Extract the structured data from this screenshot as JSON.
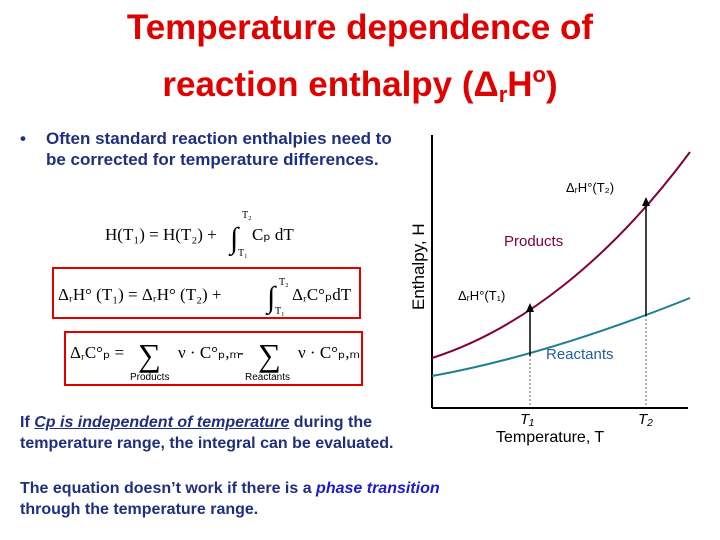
{
  "title": {
    "line1": "Temperature dependence of",
    "line2_pre": "reaction enthalpy (Δ",
    "line2_sub": "r",
    "line2_mid": "H",
    "line2_sup": "o",
    "line2_post": ")"
  },
  "bullet": "Often standard reaction enthalpies need to be corrected for temperature differences.",
  "equations": [
    {
      "lhs": "H(T₁) = H(T₂) +",
      "integral": "∫",
      "upper": "T₂",
      "lower": "T₁",
      "integrand": "Cₚ dT"
    },
    {
      "lhs": "ΔᵣH° (T₁) = ΔᵣH° (T₂) +",
      "integral": "∫",
      "upper": "T₂",
      "lower": "T₁",
      "integrand": "ΔᵣC°ₚdT"
    },
    {
      "lhs": "ΔᵣC°ₚ =",
      "sum1": "∑",
      "term1": "ν · C°ₚ,ₘ",
      "under1": "Products",
      "minus": "-",
      "sum2": "∑",
      "term2": "ν · C°ₚ,ₘ",
      "under2": "Reactants"
    }
  ],
  "note1": {
    "pre": "If ",
    "emphasis": "Cp is independent of temperature",
    "post": " during the temperature range, the integral can be evaluated."
  },
  "note2": {
    "pre": "The equation doesn’t work if there is a ",
    "emphasis": "phase transition",
    "post": " through the temperature range."
  },
  "diagram": {
    "y_label": "Enthalpy, H",
    "x_label": "Temperature, T",
    "products": "Products",
    "reactants": "Reactants",
    "dh_t2": "ΔᵣH°(T₂)",
    "dh_t1": "ΔᵣH°(T₁)",
    "t1": "T₁",
    "t2": "T₂"
  }
}
